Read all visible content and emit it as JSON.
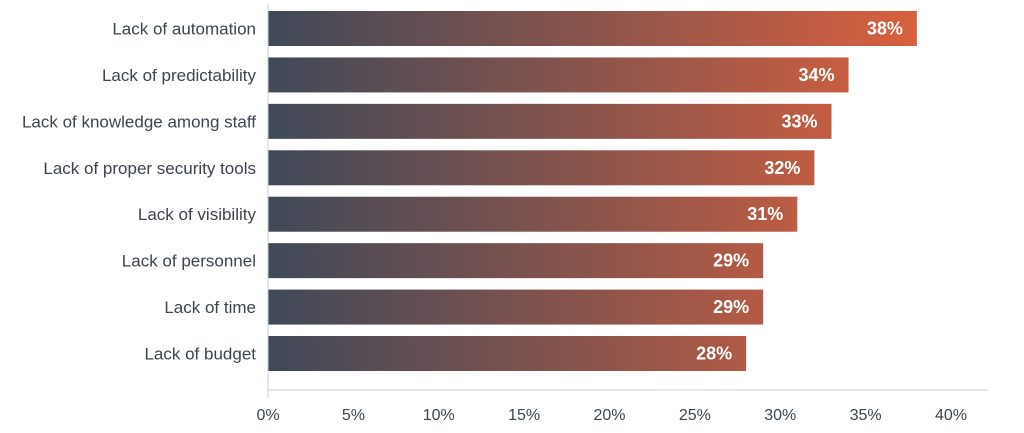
{
  "chart_data": {
    "type": "bar",
    "orientation": "horizontal",
    "categories": [
      "Lack of automation",
      "Lack of predictability",
      "Lack of knowledge among staff",
      "Lack of proper security tools",
      "Lack of visibility",
      "Lack of personnel",
      "Lack of time",
      "Lack of budget"
    ],
    "values": [
      38,
      34,
      33,
      32,
      31,
      29,
      29,
      28
    ],
    "value_labels": [
      "38%",
      "34%",
      "33%",
      "32%",
      "31%",
      "29%",
      "29%",
      "28%"
    ],
    "xlim": [
      0,
      40
    ],
    "xticks": [
      0,
      5,
      10,
      15,
      20,
      25,
      30,
      35,
      40
    ],
    "xtick_labels": [
      "0%",
      "5%",
      "10%",
      "15%",
      "20%",
      "25%",
      "30%",
      "35%",
      "40%"
    ],
    "title": "",
    "xlabel": "",
    "ylabel": "",
    "grid": false,
    "legend": "none",
    "colors": {
      "gradient_start": "#3f4958",
      "gradient_end": "#e0613d",
      "axis": "#c9cdd2",
      "text": "#3d4450",
      "value_text": "#ffffff"
    }
  }
}
